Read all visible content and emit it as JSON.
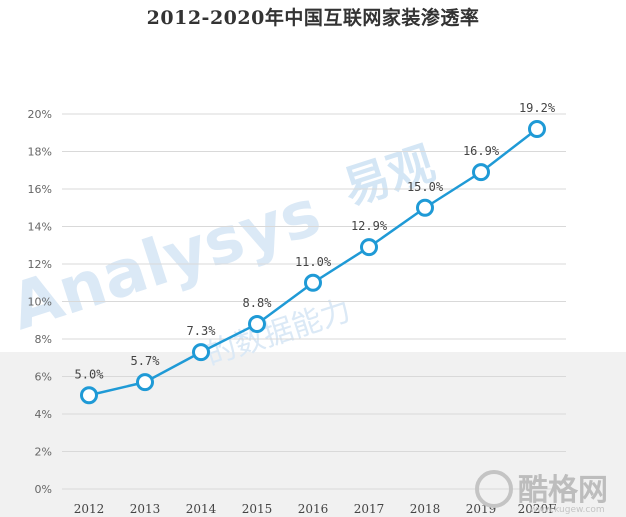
{
  "chart_data": {
    "type": "line",
    "title": "2012-2020年中国互联网家装渗透率",
    "categories": [
      "2012",
      "2013",
      "2014",
      "2015",
      "2016",
      "2017",
      "2018",
      "2019",
      "2020F"
    ],
    "series": [
      {
        "values": [
          5.0,
          5.7,
          7.3,
          8.8,
          11.0,
          12.9,
          15.0,
          16.9,
          19.2
        ],
        "labels": [
          "5.0%",
          "5.7%",
          "7.3%",
          "8.8%",
          "11.0%",
          "12.9%",
          "15.0%",
          "16.9%",
          "19.2%"
        ],
        "color": "#1f9ad6"
      }
    ],
    "y_ticks": [
      "0%",
      "2%",
      "4%",
      "6%",
      "8%",
      "10%",
      "12%",
      "14%",
      "16%",
      "18%",
      "20%"
    ],
    "ylim": [
      0,
      20
    ],
    "grid": true,
    "legend": "none"
  },
  "watermarks": {
    "analysys_en": "Analysys",
    "analysys_cn": "易观",
    "analysys_slogan": "的数据能力",
    "corner_logo": "酷格网",
    "corner_url": "www.kugew.com"
  }
}
